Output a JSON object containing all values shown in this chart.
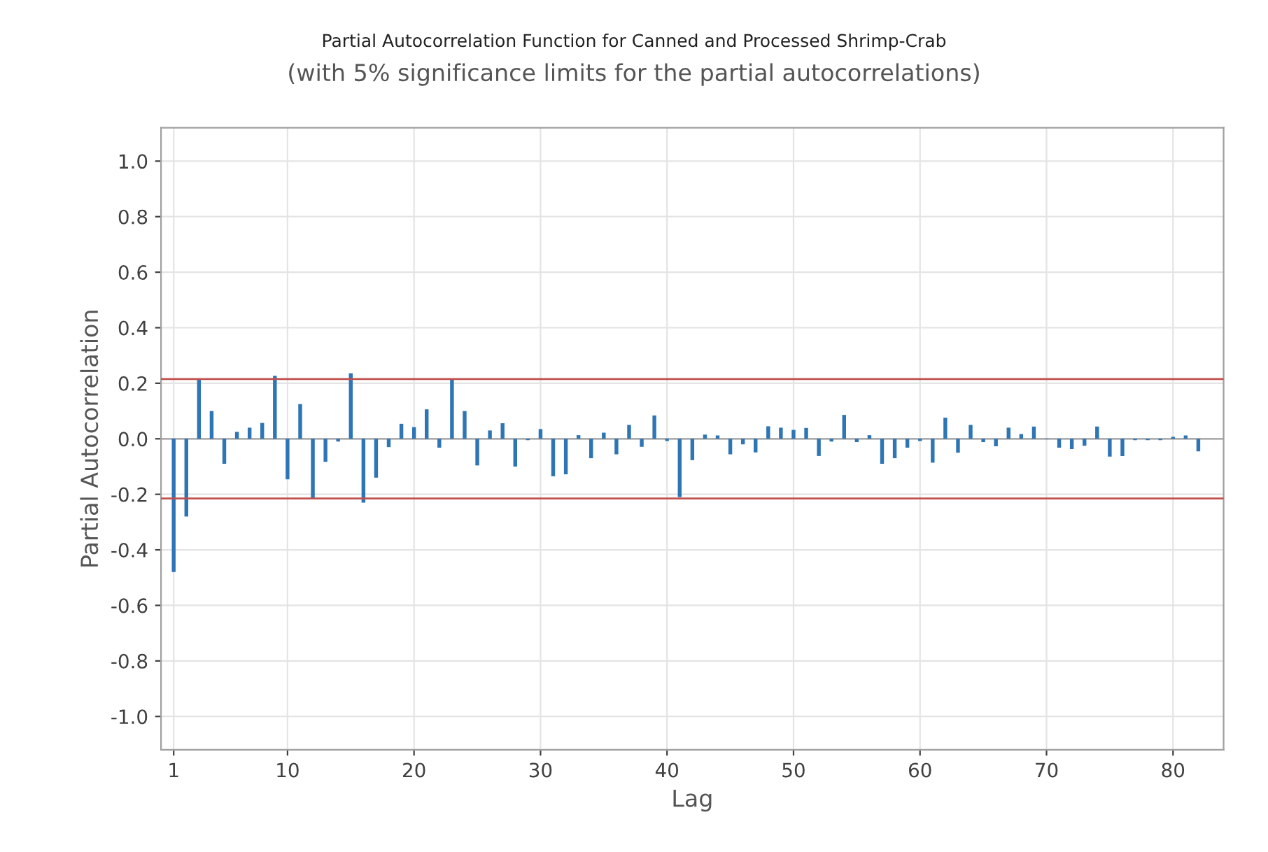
{
  "chart_data": {
    "type": "bar",
    "title": "Partial Autocorrelation Function for Canned and Processed Shrimp-Crab",
    "subtitle": "(with 5% significance limits for the partial autocorrelations)",
    "xlabel": "Lag",
    "ylabel": "Partial Autocorrelation",
    "x": [
      1,
      2,
      3,
      4,
      5,
      6,
      7,
      8,
      9,
      10,
      11,
      12,
      13,
      14,
      15,
      16,
      17,
      18,
      19,
      20,
      21,
      22,
      23,
      24,
      25,
      26,
      27,
      28,
      29,
      30,
      31,
      32,
      33,
      34,
      35,
      36,
      37,
      38,
      39,
      40,
      41,
      42,
      43,
      44,
      45,
      46,
      47,
      48,
      49,
      50,
      51,
      52,
      53,
      54,
      55,
      56,
      57,
      58,
      59,
      60,
      61,
      62,
      63,
      64,
      65,
      66,
      67,
      68,
      69,
      70,
      71,
      72,
      73,
      74,
      75,
      76,
      77,
      78,
      79,
      80,
      81,
      82
    ],
    "values": [
      -0.48,
      -0.28,
      0.215,
      0.1,
      -0.09,
      0.025,
      0.04,
      0.057,
      0.227,
      -0.146,
      0.125,
      -0.214,
      -0.083,
      -0.01,
      0.236,
      -0.23,
      -0.14,
      -0.03,
      0.054,
      0.042,
      0.106,
      -0.032,
      0.214,
      0.1,
      -0.096,
      0.03,
      0.056,
      -0.1,
      -0.005,
      0.035,
      -0.135,
      -0.128,
      0.013,
      -0.07,
      0.022,
      -0.056,
      0.05,
      -0.029,
      0.084,
      -0.008,
      -0.21,
      -0.077,
      0.015,
      0.012,
      -0.056,
      -0.02,
      -0.049,
      0.045,
      0.04,
      0.032,
      0.039,
      -0.062,
      -0.01,
      0.086,
      -0.012,
      0.013,
      -0.09,
      -0.07,
      -0.032,
      -0.008,
      -0.086,
      0.076,
      -0.05,
      0.05,
      -0.012,
      -0.027,
      0.04,
      0.017,
      0.044,
      -0.002,
      -0.032,
      -0.037,
      -0.025,
      0.044,
      -0.064,
      -0.062,
      -0.005,
      -0.005,
      -0.005,
      0.007,
      0.012,
      -0.045
    ],
    "color": "#2e75b6",
    "xlim": [
      0,
      84
    ],
    "xticks": [
      1,
      10,
      20,
      30,
      40,
      50,
      60,
      70,
      80
    ],
    "ylim": [
      -1.12,
      1.12
    ],
    "yticks": [
      {
        "value": -1.0,
        "label": "-1.0"
      },
      {
        "value": -0.8,
        "label": "-0.8"
      },
      {
        "value": -0.6,
        "label": "-0.6"
      },
      {
        "value": -0.4,
        "label": "-0.4"
      },
      {
        "value": -0.2,
        "label": "-0.2"
      },
      {
        "value": 0.0,
        "label": "0.0"
      },
      {
        "value": 0.2,
        "label": "0.2"
      },
      {
        "value": 0.4,
        "label": "0.4"
      },
      {
        "value": 0.6,
        "label": "0.6"
      },
      {
        "value": 0.8,
        "label": "0.8"
      },
      {
        "value": 1.0,
        "label": "1.0"
      }
    ],
    "ref_lines": [
      {
        "axis": "y",
        "value": 0.215,
        "color": "#c0504d"
      },
      {
        "axis": "y",
        "value": -0.215,
        "color": "#c0504d"
      }
    ],
    "grid": true
  }
}
